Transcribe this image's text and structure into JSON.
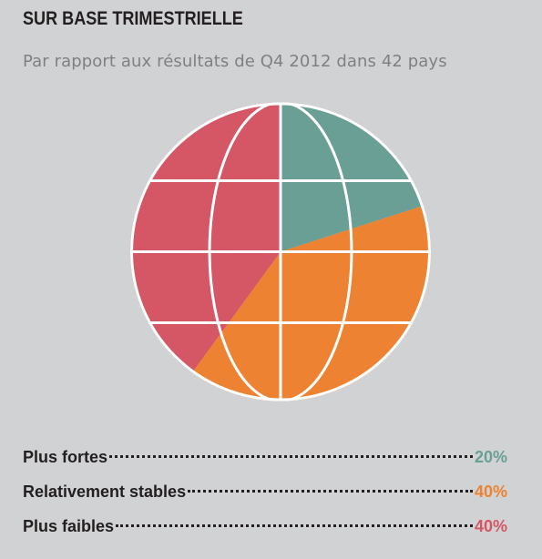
{
  "header": {
    "title": "SUR BASE TRIMESTRIELLE",
    "subtitle": "Par rapport aux résultats de Q4 2012 dans 42 pays"
  },
  "chart_data": {
    "type": "pie",
    "title": "SUR BASE TRIMESTRIELLE",
    "subtitle": "Par rapport aux résultats de Q4 2012 dans 42 pays",
    "slices": [
      {
        "label": "Plus fortes",
        "value": 20,
        "display": "20%",
        "color": "#6a9f95"
      },
      {
        "label": "Relativement stables",
        "value": 40,
        "display": "40%",
        "color": "#ec8232"
      },
      {
        "label": "Plus faibles",
        "value": 40,
        "display": "40%",
        "color": "#d55665"
      }
    ],
    "style": "globe",
    "legend_position": "bottom"
  },
  "colors": {
    "background": "#d1d2d4",
    "grid_lines": "#ffffff"
  }
}
